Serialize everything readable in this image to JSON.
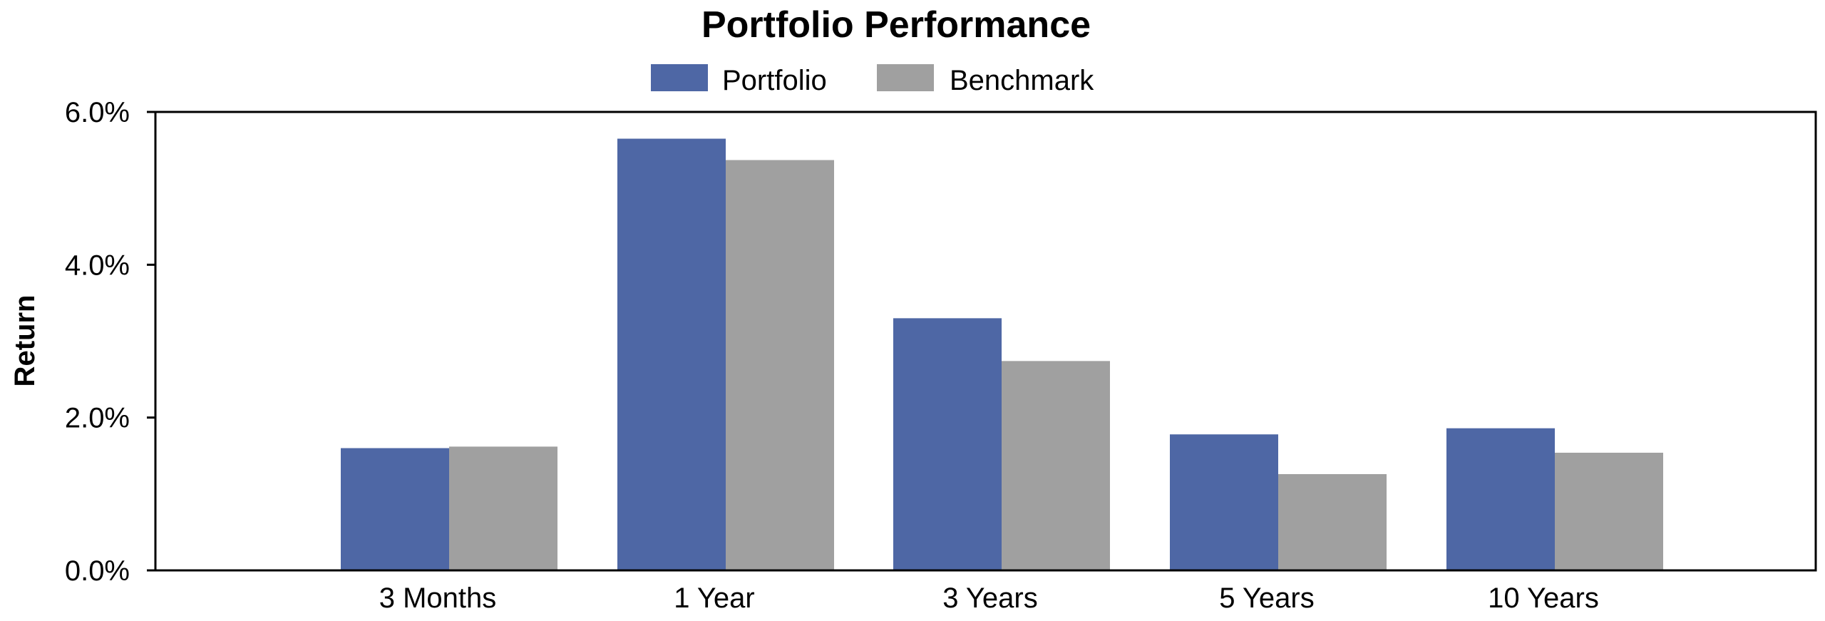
{
  "chart_data": {
    "type": "bar",
    "title": "Portfolio Performance",
    "xlabel": "",
    "ylabel": "Return",
    "categories": [
      "3 Months",
      "1 Year",
      "3 Years",
      "5 Years",
      "10 Years"
    ],
    "series": [
      {
        "name": "Portfolio",
        "color": "#4e67a5",
        "values": [
          1.6,
          5.65,
          3.3,
          1.78,
          1.86
        ]
      },
      {
        "name": "Benchmark",
        "color": "#a0a0a0",
        "values": [
          1.62,
          5.37,
          2.74,
          1.26,
          1.54
        ]
      }
    ],
    "ylim": [
      0,
      6
    ],
    "yticks": [
      0,
      2,
      4,
      6
    ],
    "ytick_labels": [
      "0.0%",
      "2.0%",
      "4.0%",
      "6.0%"
    ],
    "legend_position": "top-center",
    "grid": false
  }
}
